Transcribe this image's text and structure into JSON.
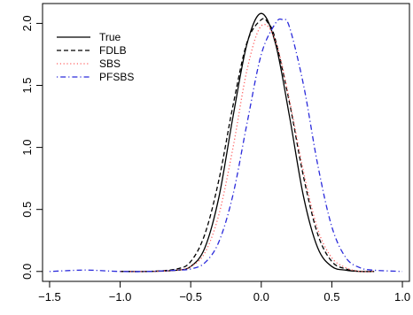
{
  "chart_data": {
    "type": "line",
    "title": "",
    "xlabel": "",
    "ylabel": "",
    "xlim": [
      -1.5,
      1.0
    ],
    "ylim": [
      0,
      2.1
    ],
    "x_ticks": [
      {
        "value": -1.5,
        "label": "−1.5"
      },
      {
        "value": -1.0,
        "label": "−1.0"
      },
      {
        "value": -0.5,
        "label": "−0.5"
      },
      {
        "value": 0.0,
        "label": "0.0"
      },
      {
        "value": 0.5,
        "label": "0.5"
      },
      {
        "value": 1.0,
        "label": "1.0"
      }
    ],
    "y_ticks": [
      {
        "value": 0.0,
        "label": "0.0"
      },
      {
        "value": 0.5,
        "label": "0.5"
      },
      {
        "value": 1.0,
        "label": "1.0"
      },
      {
        "value": 1.5,
        "label": "1.5"
      },
      {
        "value": 2.0,
        "label": "2.0"
      }
    ],
    "grid": false,
    "legend_position": "top-left",
    "series": [
      {
        "name": "True",
        "color": "#000000",
        "line_style": "solid",
        "x": [
          -1.0,
          -0.8,
          -0.6,
          -0.5,
          -0.4,
          -0.3,
          -0.2,
          -0.1,
          0.0,
          0.1,
          0.2,
          0.3,
          0.4,
          0.5,
          0.6,
          0.7,
          0.8
        ],
        "y": [
          0.0,
          0.0,
          0.01,
          0.04,
          0.19,
          0.6,
          1.25,
          1.84,
          2.08,
          1.84,
          1.25,
          0.6,
          0.19,
          0.04,
          0.01,
          0.0,
          0.0
        ]
      },
      {
        "name": "FDLB",
        "color": "#000000",
        "line_style": "dashed",
        "x": [
          -1.0,
          -0.8,
          -0.6,
          -0.5,
          -0.4,
          -0.3,
          -0.2,
          -0.1,
          0.0,
          0.05,
          0.1,
          0.2,
          0.3,
          0.4,
          0.5,
          0.6,
          0.7,
          0.8
        ],
        "y": [
          0.0,
          0.0,
          0.02,
          0.08,
          0.3,
          0.74,
          1.34,
          1.85,
          2.03,
          2.0,
          1.87,
          1.36,
          0.76,
          0.3,
          0.08,
          0.02,
          0.0,
          0.0
        ]
      },
      {
        "name": "SBS",
        "color": "#ff6060",
        "line_style": "dotted",
        "x": [
          -1.0,
          -0.8,
          -0.6,
          -0.5,
          -0.4,
          -0.3,
          -0.2,
          -0.1,
          0.0,
          0.1,
          0.2,
          0.3,
          0.4,
          0.5,
          0.6,
          0.7,
          0.8
        ],
        "y": [
          0.0,
          0.0,
          0.01,
          0.04,
          0.15,
          0.46,
          1.0,
          1.63,
          1.98,
          1.86,
          1.38,
          0.8,
          0.34,
          0.11,
          0.03,
          0.0,
          0.0
        ]
      },
      {
        "name": "PFSBS",
        "color": "#2a2adb",
        "line_style": "dotdash",
        "x": [
          -1.5,
          -1.3,
          -1.2,
          -1.0,
          -0.8,
          -0.6,
          -0.5,
          -0.4,
          -0.3,
          -0.2,
          -0.1,
          0.0,
          0.1,
          0.15,
          0.2,
          0.3,
          0.4,
          0.5,
          0.6,
          0.7,
          0.8,
          1.0
        ],
        "y": [
          0.0,
          0.01,
          0.01,
          0.0,
          0.0,
          0.01,
          0.02,
          0.07,
          0.24,
          0.62,
          1.2,
          1.75,
          2.0,
          2.03,
          1.97,
          1.5,
          0.86,
          0.36,
          0.11,
          0.03,
          0.01,
          0.0
        ]
      }
    ]
  }
}
